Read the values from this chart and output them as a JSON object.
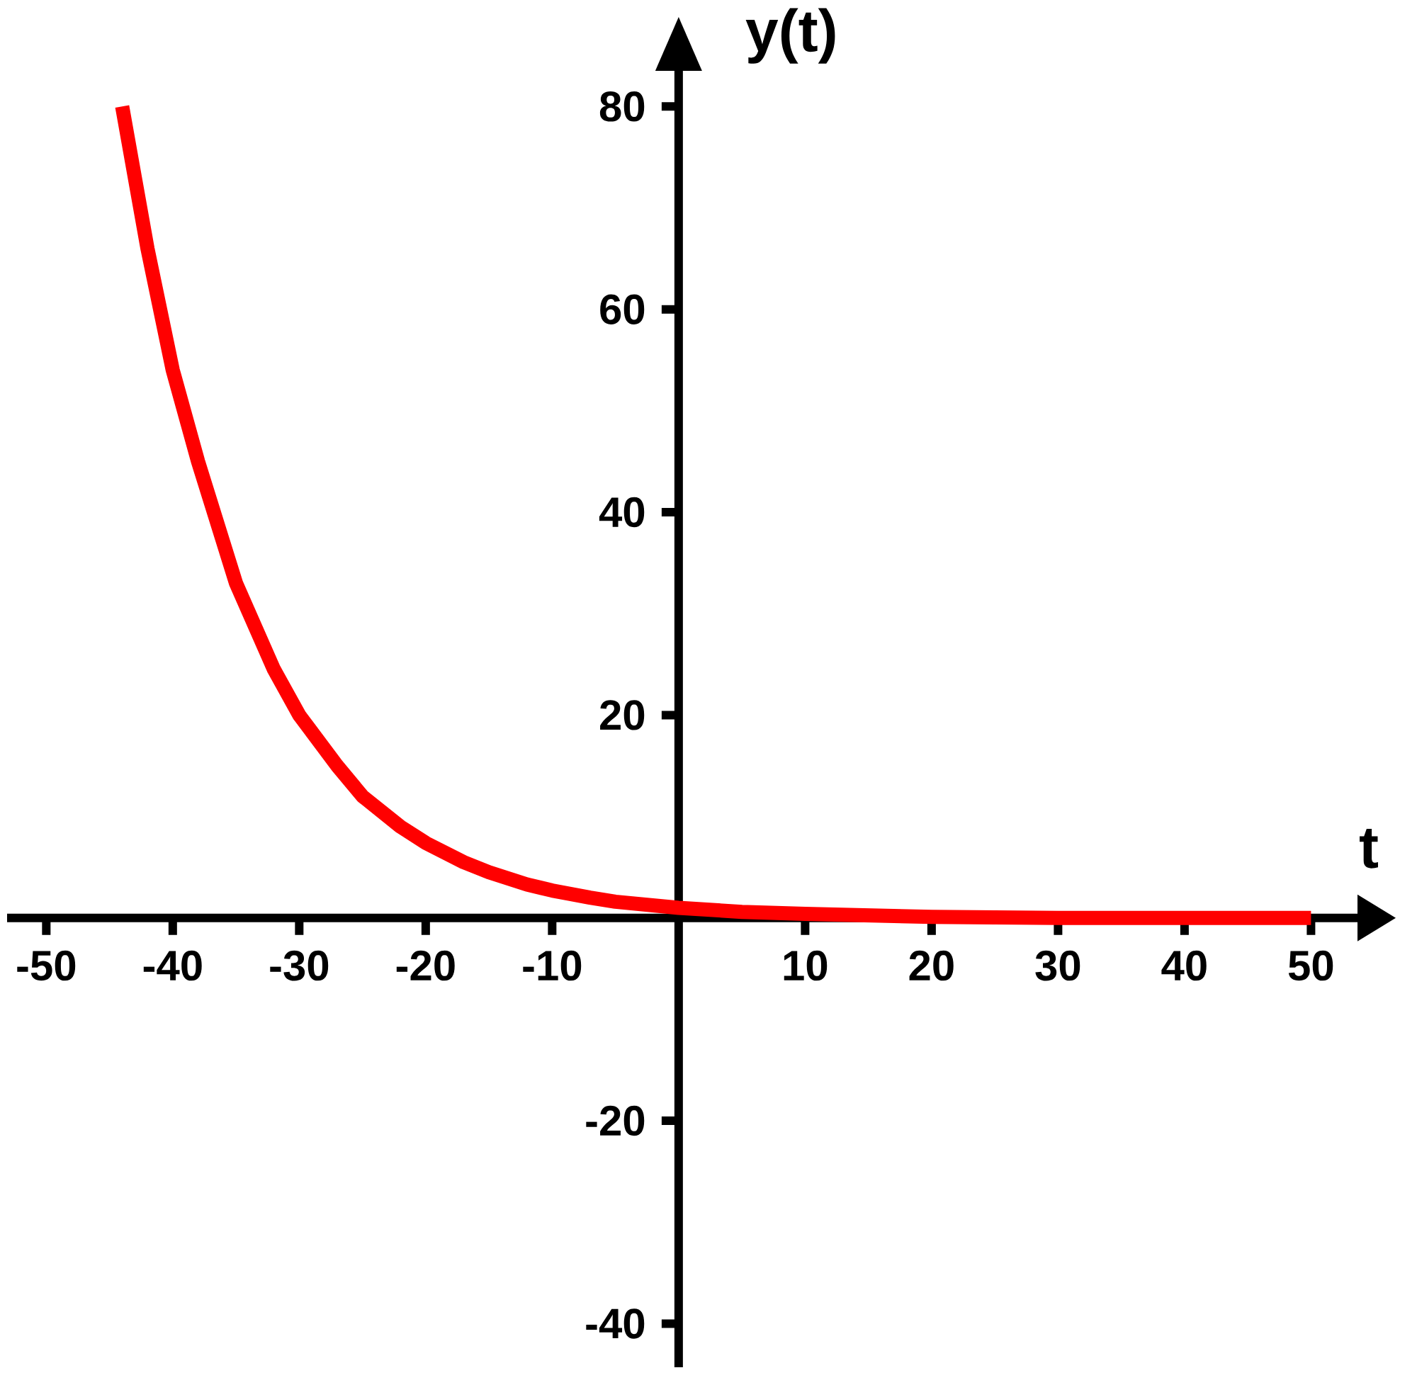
{
  "chart_data": {
    "type": "line",
    "xlabel": "t",
    "ylabel": "y(t)",
    "xlim": [
      -53.1,
      53.9
    ],
    "ylim": [
      -44.3,
      83.8
    ],
    "xticks": [
      -50,
      -40,
      -30,
      -20,
      -10,
      10,
      20,
      30,
      40,
      50
    ],
    "yticks": [
      -40,
      -20,
      20,
      40,
      60,
      80
    ],
    "series": [
      {
        "color": "#ff0000",
        "x": [
          -44,
          -42,
          -40,
          -38,
          -35,
          -32,
          -30,
          -27,
          -25,
          -22,
          -20,
          -17,
          -15,
          -12,
          -10,
          -7,
          -5,
          0,
          5,
          10,
          20,
          30,
          40,
          50
        ],
        "values": [
          80,
          66,
          54,
          45,
          33,
          24.5,
          20,
          15,
          12,
          9,
          7.4,
          5.5,
          4.5,
          3.3,
          2.7,
          2,
          1.6,
          1,
          0.6,
          0.4,
          0.1,
          0,
          0,
          0
        ]
      }
    ]
  }
}
